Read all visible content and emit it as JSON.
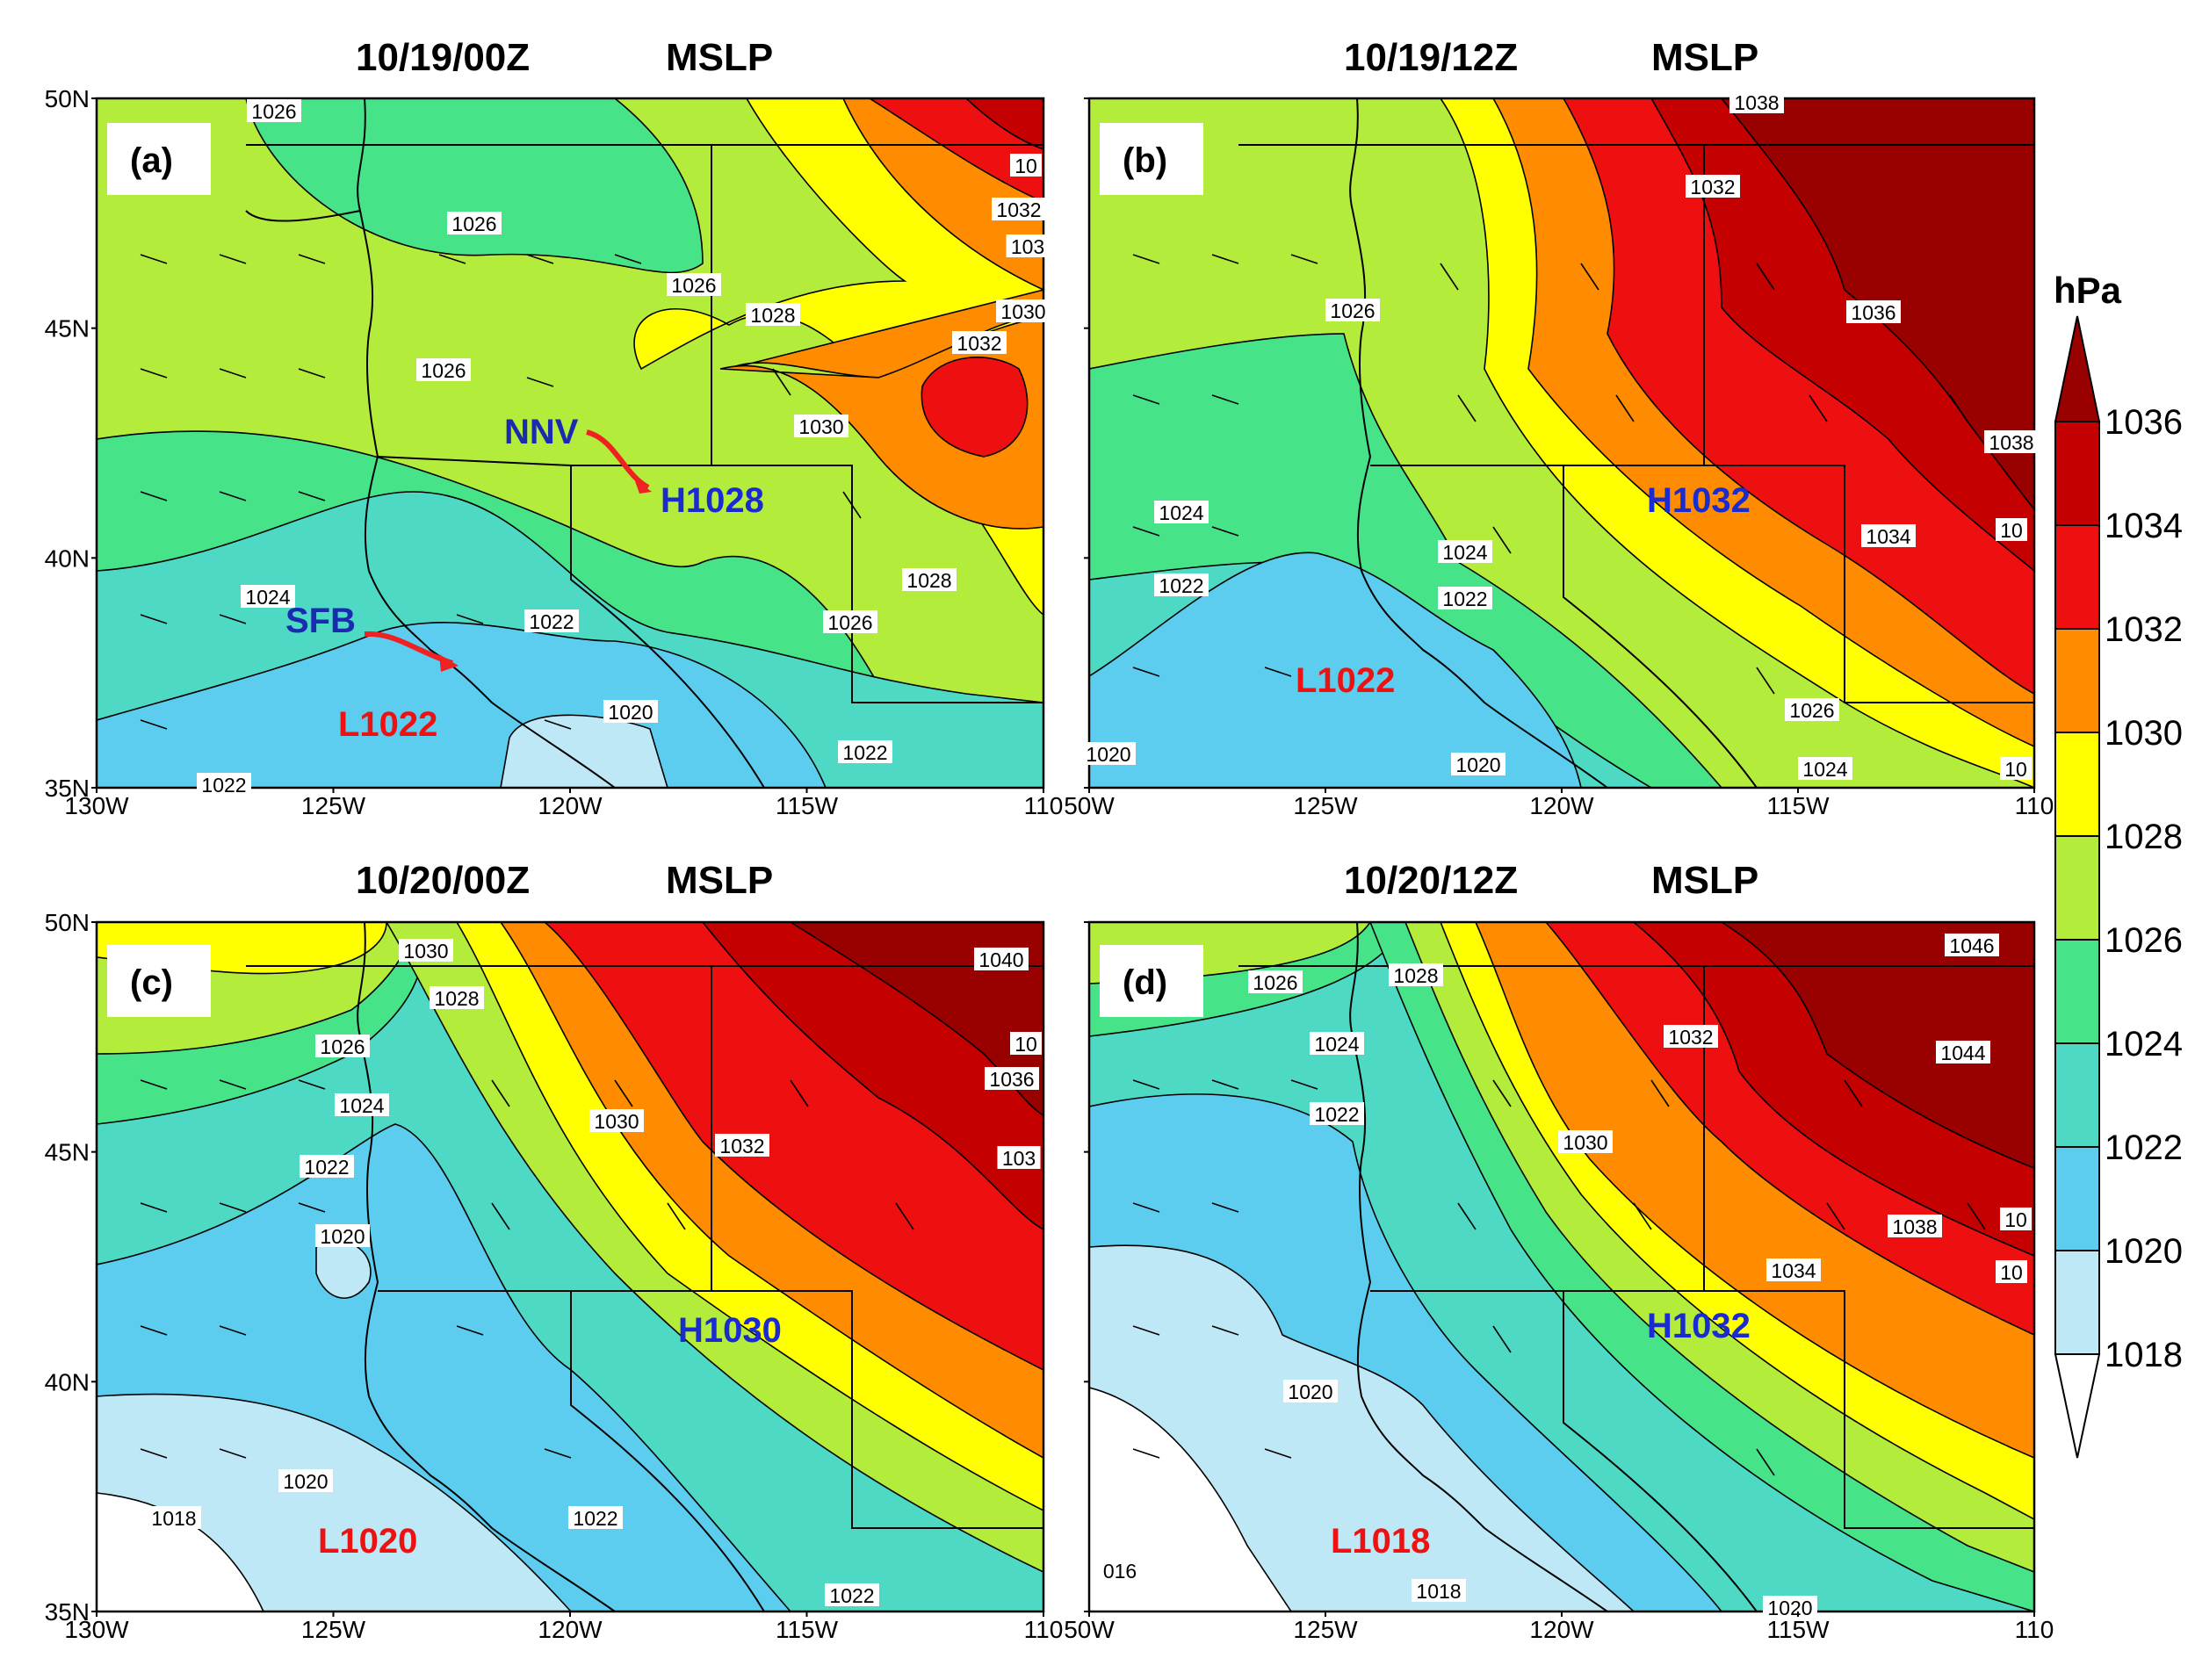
{
  "colors": {
    "lt1018": "#ffffff",
    "c1018": "#bfe8f6",
    "c1020": "#5ccdee",
    "c1022": "#4dd9c4",
    "c1024": "#46e389",
    "c1026": "#b4ec3c",
    "c1028": "#ffff00",
    "c1030": "#ff8c00",
    "c1032": "#ee1010",
    "c1034": "#c40000",
    "c1036": "#990000",
    "land_line": "#000000"
  },
  "axis": {
    "lat_labels": [
      "50N",
      "45N",
      "40N",
      "35N"
    ],
    "lon_labels": [
      "130W",
      "125W",
      "120W",
      "115W",
      "110"
    ],
    "lon_labels_right": [
      "50W",
      "125W",
      "120W",
      "115W",
      "110"
    ]
  },
  "panels": [
    {
      "id": "a",
      "letter": "(a)",
      "time": "10/19/00Z",
      "field": "MSLP",
      "centers": [
        {
          "label": "H1028",
          "color": "#1a2bd0"
        },
        {
          "label": "L1022",
          "color": "#ee1111"
        }
      ],
      "site_labels": [
        {
          "label": "NNV",
          "color": "#1a2bb0"
        },
        {
          "label": "SFB",
          "color": "#1a2bb0"
        }
      ],
      "contour_labels": [
        "1026",
        "1026",
        "1026",
        "1028",
        "1026",
        "1030",
        "1032",
        "1030",
        "1032",
        "103",
        "10",
        "1024",
        "1022",
        "1026",
        "1028",
        "1020",
        "1022",
        "1022"
      ]
    },
    {
      "id": "b",
      "letter": "(b)",
      "time": "10/19/12Z",
      "field": "MSLP",
      "centers": [
        {
          "label": "H1032",
          "color": "#1a2bd0"
        },
        {
          "label": "L1022",
          "color": "#ee1111"
        }
      ],
      "contour_labels": [
        "1038",
        "1032",
        "1026",
        "1036",
        "1038",
        "1034",
        "1024",
        "1024",
        "1022",
        "1022",
        "1026",
        "1020",
        "1024",
        "10",
        "1020",
        "10"
      ]
    },
    {
      "id": "c",
      "letter": "(c)",
      "time": "10/20/00Z",
      "field": "MSLP",
      "centers": [
        {
          "label": "H1030",
          "color": "#1a2bd0"
        },
        {
          "label": "L1020",
          "color": "#ee1111"
        }
      ],
      "contour_labels": [
        "1030",
        "1028",
        "1026",
        "1024",
        "1022",
        "1020",
        "1030",
        "1032",
        "1040",
        "10",
        "1036",
        "103",
        "1020",
        "1018",
        "1022",
        "1022"
      ]
    },
    {
      "id": "d",
      "letter": "(d)",
      "time": "10/20/12Z",
      "field": "MSLP",
      "centers": [
        {
          "label": "H1032",
          "color": "#1a2bd0"
        },
        {
          "label": "L1018",
          "color": "#ee1111"
        }
      ],
      "contour_labels": [
        "1026",
        "1028",
        "1024",
        "1022",
        "1032",
        "1030",
        "1046",
        "1044",
        "1038",
        "1034",
        "10",
        "10",
        "1020",
        "016",
        "1018",
        "1020"
      ]
    }
  ],
  "colorbar": {
    "unit": "hPa",
    "ticks": [
      "1036",
      "1034",
      "1032",
      "1030",
      "1028",
      "1026",
      "1024",
      "1022",
      "1020",
      "1018"
    ]
  }
}
